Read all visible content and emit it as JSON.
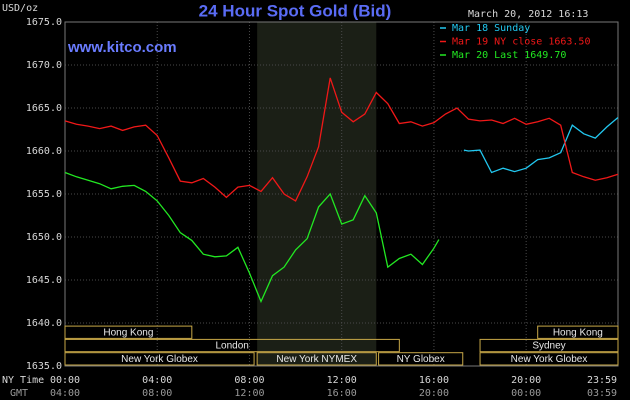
{
  "chart_data": {
    "type": "line",
    "title": "24 Hour Spot Gold (Bid)",
    "site": "www.kitco.com",
    "timestamp": "March 20, 2012 16:13",
    "y_label": "USD/oz",
    "x_row_labels": [
      "NY Time",
      "GMT"
    ],
    "xlim": [
      0,
      23.983
    ],
    "ylim": [
      1635,
      1675
    ],
    "xticks": [
      {
        "value": 0,
        "label": "00:00"
      },
      {
        "value": 4,
        "label": "04:00"
      },
      {
        "value": 8,
        "label": "08:00"
      },
      {
        "value": 12,
        "label": "12:00"
      },
      {
        "value": 16,
        "label": "16:00"
      },
      {
        "value": 20,
        "label": "20:00"
      },
      {
        "value": 23.983,
        "label": "23:59"
      }
    ],
    "xticks_gmt": [
      {
        "value": 0,
        "label": "04:00"
      },
      {
        "value": 4,
        "label": "08:00"
      },
      {
        "value": 8,
        "label": "12:00"
      },
      {
        "value": 12,
        "label": "16:00"
      },
      {
        "value": 16,
        "label": "20:00"
      },
      {
        "value": 20,
        "label": "00:00"
      },
      {
        "value": 23.983,
        "label": "03:59"
      }
    ],
    "yticks": [
      {
        "value": 1635,
        "label": "1635.0"
      },
      {
        "value": 1640,
        "label": "1640.0"
      },
      {
        "value": 1645,
        "label": "1645.0"
      },
      {
        "value": 1650,
        "label": "1650.0"
      },
      {
        "value": 1655,
        "label": "1655.0"
      },
      {
        "value": 1660,
        "label": "1660.0"
      },
      {
        "value": 1665,
        "label": "1665.0"
      },
      {
        "value": 1670,
        "label": "1670.0"
      },
      {
        "value": 1675,
        "label": "1675.0"
      }
    ],
    "grid": true,
    "legend": "top-right",
    "shaded_range": [
      8.333,
      13.5
    ],
    "session_rows": [
      [
        {
          "label": "Hong Kong",
          "start": 0,
          "end": 5.5
        },
        {
          "label": "Hong Kong",
          "start": 20.5,
          "end": 23.983
        }
      ],
      [
        {
          "label": "London",
          "start": 0,
          "end": 14.5
        },
        {
          "label": "Sydney",
          "start": 18,
          "end": 23.983
        }
      ],
      [
        {
          "label": "New York Globex",
          "start": 0,
          "end": 8.2
        },
        {
          "label": "New York NYMEX",
          "start": 8.333,
          "end": 13.5
        },
        {
          "label": "NY Globex",
          "start": 13.6,
          "end": 17.25
        },
        {
          "label": "New York Globex",
          "start": 18,
          "end": 23.983
        }
      ]
    ],
    "series": [
      {
        "name": "Mar 18 Sunday",
        "color": "#22c8f0",
        "x": [
          17.3,
          17.5,
          18,
          18.5,
          19,
          19.5,
          20,
          20.5,
          21,
          21.5,
          22,
          22.5,
          23,
          23.5,
          23.983
        ],
        "values": [
          1660.1,
          1660.0,
          1660.1,
          1657.5,
          1658.0,
          1657.6,
          1658.0,
          1659.0,
          1659.2,
          1659.8,
          1663.0,
          1662.0,
          1661.5,
          1662.8,
          1663.9
        ]
      },
      {
        "name": "Mar 19 NY close 1663.50",
        "color": "#f01818",
        "x": [
          0,
          0.5,
          1,
          1.5,
          2,
          2.5,
          3,
          3.5,
          4,
          4.5,
          5,
          5.5,
          6,
          6.5,
          7,
          7.5,
          8,
          8.5,
          9,
          9.5,
          10,
          10.5,
          11,
          11.5,
          12,
          12.5,
          13,
          13.5,
          14,
          14.5,
          15,
          15.5,
          16,
          16.5,
          17,
          17.5,
          18,
          18.5,
          19,
          19.5,
          20,
          20.5,
          21,
          21.5,
          22,
          22.5,
          23,
          23.5,
          23.983
        ],
        "values": [
          1663.5,
          1663.1,
          1662.9,
          1662.6,
          1662.9,
          1662.4,
          1662.8,
          1663.0,
          1661.8,
          1659.2,
          1656.5,
          1656.3,
          1656.8,
          1655.8,
          1654.6,
          1655.8,
          1656.0,
          1655.3,
          1656.9,
          1655.0,
          1654.2,
          1657.0,
          1660.5,
          1668.5,
          1664.5,
          1663.4,
          1664.3,
          1666.8,
          1665.5,
          1663.2,
          1663.4,
          1662.9,
          1663.3,
          1664.3,
          1665.0,
          1663.7,
          1663.5,
          1663.6,
          1663.2,
          1663.8,
          1663.1,
          1663.4,
          1663.8,
          1663.0,
          1657.5,
          1657.0,
          1656.6,
          1656.9,
          1657.3
        ]
      },
      {
        "name": "Mar 20 Last 1649.70",
        "color": "#22e822",
        "x": [
          0,
          0.5,
          1,
          1.5,
          2,
          2.5,
          3,
          3.5,
          4,
          4.5,
          5,
          5.5,
          6,
          6.5,
          7,
          7.5,
          8,
          8.5,
          9,
          9.5,
          10,
          10.5,
          11,
          11.5,
          12,
          12.5,
          13,
          13.5,
          14,
          14.5,
          15,
          15.5,
          16,
          16.217
        ],
        "values": [
          1657.5,
          1657.0,
          1656.6,
          1656.2,
          1655.6,
          1655.9,
          1656.0,
          1655.3,
          1654.2,
          1652.5,
          1650.5,
          1649.6,
          1648.0,
          1647.7,
          1647.8,
          1648.8,
          1645.8,
          1642.5,
          1645.5,
          1646.5,
          1648.5,
          1649.8,
          1653.5,
          1655.0,
          1651.5,
          1652.0,
          1654.8,
          1652.8,
          1646.5,
          1647.5,
          1648.0,
          1646.8,
          1648.7,
          1649.7
        ]
      }
    ]
  }
}
